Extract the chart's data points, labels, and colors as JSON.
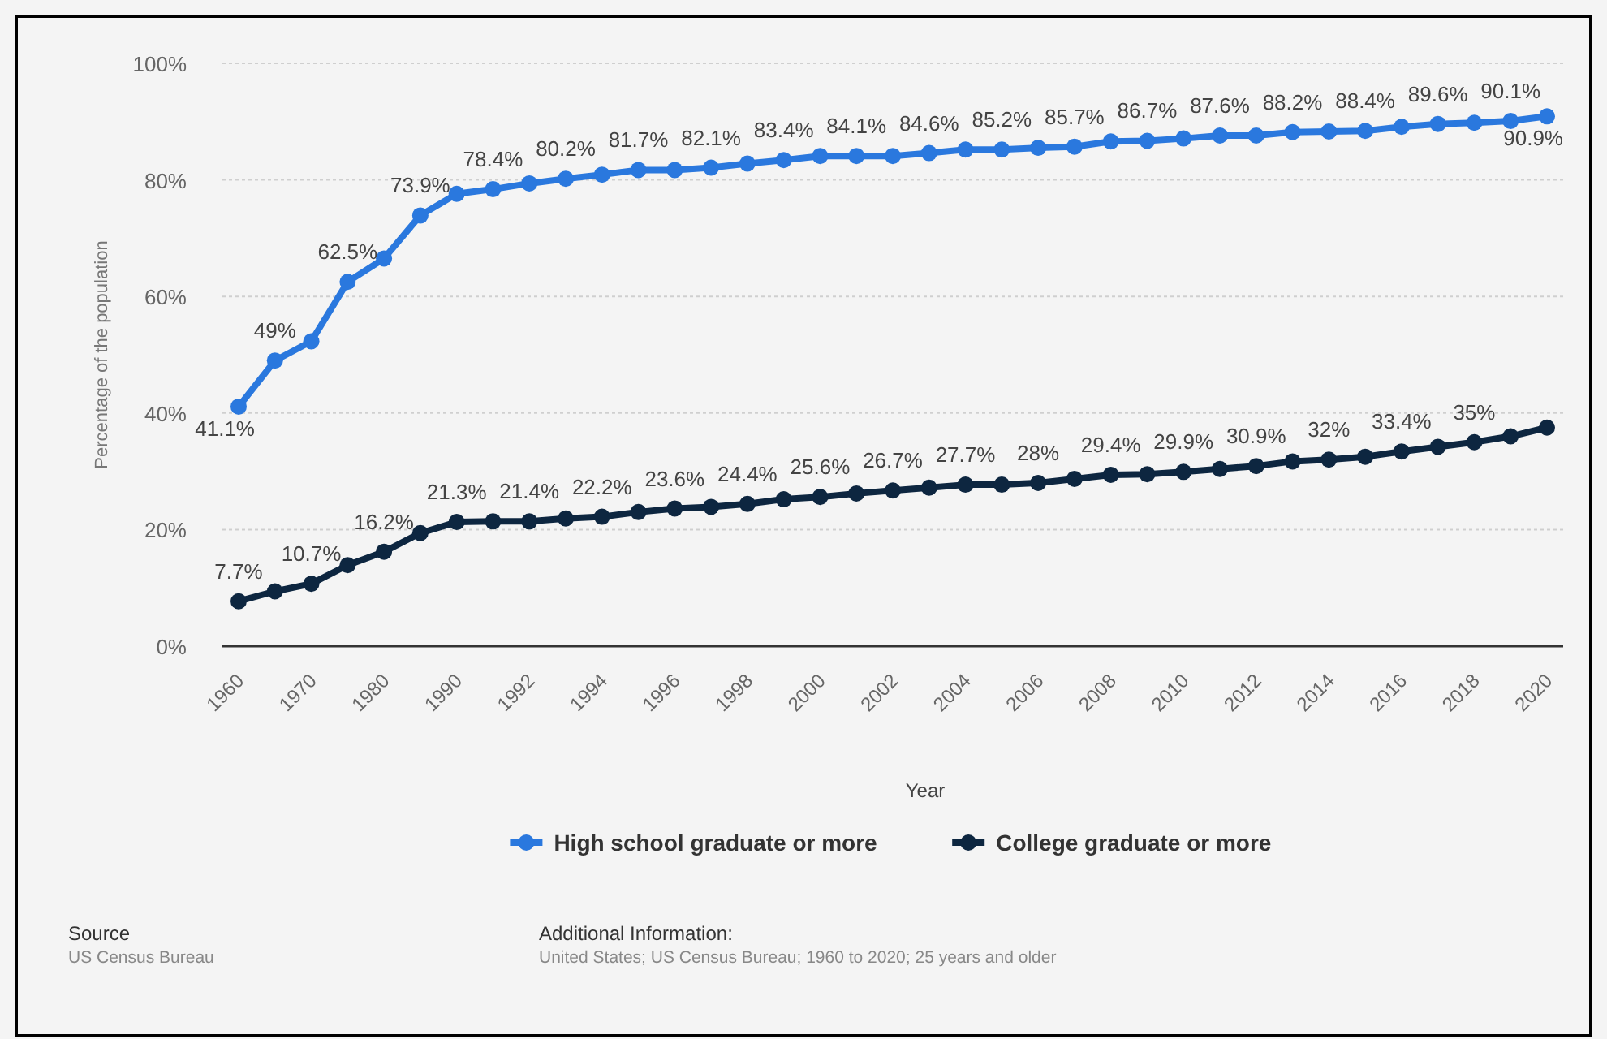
{
  "chart_data": {
    "type": "line",
    "xlabel": "Year",
    "ylabel": "Percentage of the population",
    "categories": [
      "1960",
      null,
      "1970",
      null,
      "1980",
      null,
      "1990",
      null,
      "1992",
      null,
      "1994",
      null,
      "1996",
      null,
      "1998",
      null,
      "2000",
      null,
      "2002",
      null,
      "2004",
      null,
      "2006",
      null,
      "2008",
      null,
      "2010",
      null,
      "2012",
      null,
      "2014",
      null,
      "2016",
      null,
      "2018",
      null,
      "2020"
    ],
    "series": [
      {
        "name": "High school graduate or more",
        "color": "#2a78de",
        "values": [
          41.1,
          49.0,
          52.3,
          62.5,
          66.5,
          73.9,
          77.6,
          78.4,
          79.4,
          80.2,
          80.9,
          81.7,
          81.7,
          82.1,
          82.8,
          83.4,
          84.1,
          84.1,
          84.1,
          84.6,
          85.2,
          85.2,
          85.5,
          85.7,
          86.6,
          86.7,
          87.1,
          87.6,
          87.6,
          88.2,
          88.3,
          88.4,
          89.1,
          89.6,
          89.8,
          90.1,
          90.9
        ],
        "value_labels": [
          "41.1%",
          "49%",
          null,
          "62.5%",
          null,
          "73.9%",
          null,
          "78.4%",
          null,
          "80.2%",
          null,
          "81.7%",
          null,
          "82.1%",
          null,
          "83.4%",
          null,
          "84.1%",
          null,
          "84.6%",
          null,
          "85.2%",
          null,
          "85.7%",
          null,
          "86.7%",
          null,
          "87.6%",
          null,
          "88.2%",
          null,
          "88.4%",
          null,
          "89.6%",
          null,
          "90.1%",
          "90.9%"
        ]
      },
      {
        "name": "College graduate or more",
        "color": "#0d2640",
        "values": [
          7.7,
          9.4,
          10.7,
          13.9,
          16.2,
          19.4,
          21.3,
          21.4,
          21.4,
          21.9,
          22.2,
          23.0,
          23.6,
          23.9,
          24.4,
          25.2,
          25.6,
          26.2,
          26.7,
          27.2,
          27.7,
          27.7,
          28.0,
          28.7,
          29.4,
          29.5,
          29.9,
          30.4,
          30.9,
          31.7,
          32.0,
          32.5,
          33.4,
          34.2,
          35.0,
          36.0,
          37.5
        ],
        "value_labels": [
          "7.7%",
          null,
          "10.7%",
          null,
          "16.2%",
          null,
          "21.3%",
          null,
          "21.4%",
          null,
          "22.2%",
          null,
          "23.6%",
          null,
          "24.4%",
          null,
          "25.6%",
          null,
          "26.7%",
          null,
          "27.7%",
          null,
          "28%",
          null,
          "29.4%",
          null,
          "29.9%",
          null,
          "30.9%",
          null,
          "32%",
          null,
          "33.4%",
          null,
          "35%",
          null,
          null
        ]
      }
    ],
    "ylim": [
      0,
      100
    ],
    "yticks": [
      {
        "value": 0,
        "label": "0%"
      },
      {
        "value": 20,
        "label": "20%"
      },
      {
        "value": 40,
        "label": "40%"
      },
      {
        "value": 60,
        "label": "60%"
      },
      {
        "value": 80,
        "label": "80%"
      },
      {
        "value": 100,
        "label": "100%"
      }
    ],
    "grid": "y",
    "legend": "bottom",
    "marker": "circle",
    "line_style": "solid",
    "annotations": [
      "Source",
      "US Census Bureau",
      "Additional Information:",
      "United States; US Census Bureau; 1960 to 2020; 25 years and older"
    ]
  }
}
